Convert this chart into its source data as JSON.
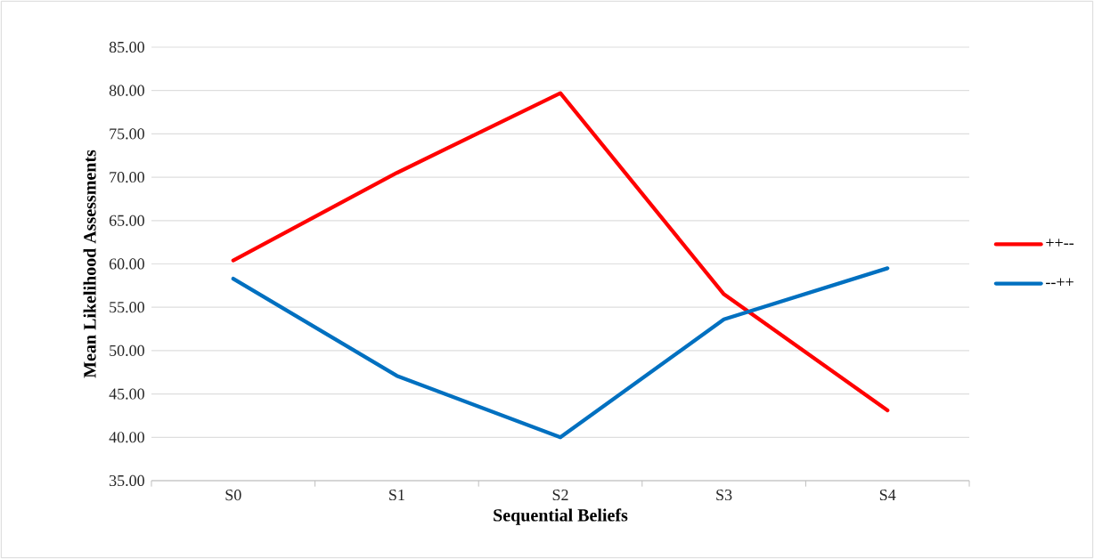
{
  "chart_data": {
    "type": "line",
    "xlabel": "Sequential Beliefs",
    "ylabel": "Mean Likelihood Assessments",
    "categories": [
      "S0",
      "S1",
      "S2",
      "S3",
      "S4"
    ],
    "series": [
      {
        "name": "++--",
        "color": "#ff0000",
        "values": [
          60.4,
          70.5,
          79.7,
          56.5,
          43.1
        ]
      },
      {
        "name": "--++",
        "color": "#0070c0",
        "values": [
          58.3,
          47.1,
          40.0,
          53.6,
          59.5
        ]
      }
    ],
    "ylim": [
      35,
      85
    ],
    "yticks": [
      {
        "value": 35,
        "label": "35.00"
      },
      {
        "value": 40,
        "label": "40.00"
      },
      {
        "value": 45,
        "label": "45.00"
      },
      {
        "value": 50,
        "label": "50.00"
      },
      {
        "value": 55,
        "label": "55.00"
      },
      {
        "value": 60,
        "label": "60.00"
      },
      {
        "value": 65,
        "label": "65.00"
      },
      {
        "value": 70,
        "label": "70.00"
      },
      {
        "value": 75,
        "label": "75.00"
      },
      {
        "value": 80,
        "label": "80.00"
      },
      {
        "value": 85,
        "label": "85.00"
      }
    ],
    "grid": "y",
    "legend": "right",
    "marker": "none",
    "line_style": "solid"
  }
}
